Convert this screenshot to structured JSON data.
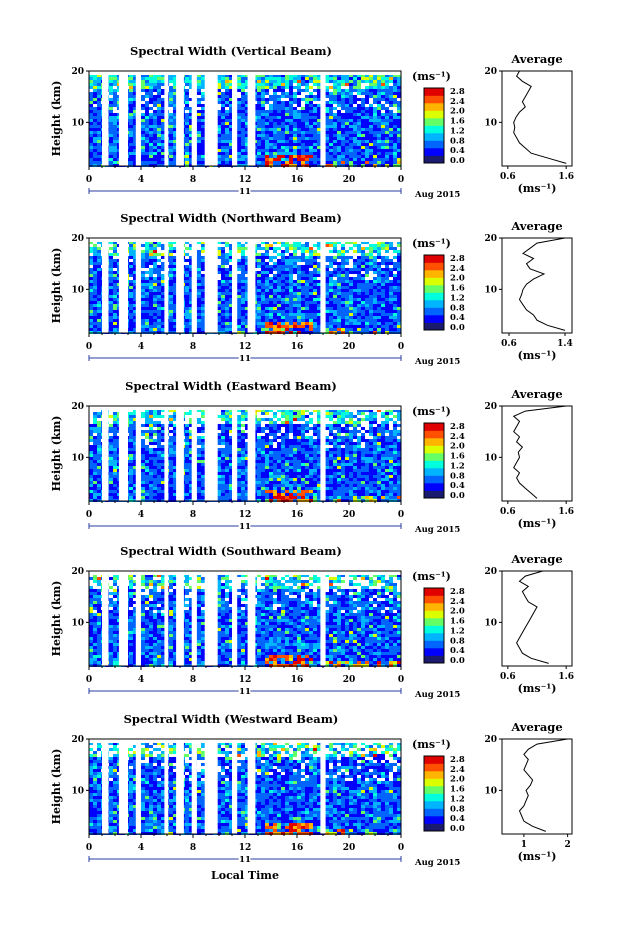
{
  "figure": {
    "xlabel": "Local Time",
    "date_label": "Aug 2015",
    "day_label": "11",
    "ylabel": "Height (km)",
    "colorbar_unit": "(ms⁻¹)",
    "avg_title": "Average",
    "avg_xlabel": "(ms⁻¹)"
  },
  "colorbar": {
    "ticks": [
      "2.8",
      "2.4",
      "2.0",
      "1.6",
      "1.2",
      "0.8",
      "0.4",
      "0.0"
    ],
    "colors": [
      "#1a1a6e",
      "#0000ff",
      "#0064ff",
      "#00b4ff",
      "#00ffdc",
      "#64ff64",
      "#dcff00",
      "#ffb400",
      "#ff5000",
      "#e00000"
    ]
  },
  "chart_data": [
    {
      "type": "heatmap",
      "title": "Spectral Width (Vertical Beam)",
      "xlim": [
        0,
        24
      ],
      "ylim": [
        1.5,
        20
      ],
      "x_ticks": [
        "0",
        "4",
        "8",
        "12",
        "16",
        "20",
        "0"
      ],
      "y_ticks": [
        "20",
        "10"
      ],
      "avg_x_ticks": [
        "0.6",
        "1.6"
      ],
      "avg_profile": {
        "xlim": [
          0.5,
          1.7
        ],
        "x": [
          1.6,
          1.3,
          1.0,
          0.9,
          0.8,
          0.75,
          0.7,
          0.72,
          0.7,
          0.74,
          0.8,
          0.9,
          0.85,
          0.9,
          0.95,
          1.0,
          0.85,
          0.75,
          0.8
        ],
        "y": [
          2,
          3,
          4,
          5,
          6,
          7,
          8,
          9,
          10,
          11,
          12,
          13,
          14,
          15,
          16,
          17,
          18,
          19,
          20
        ]
      }
    },
    {
      "type": "heatmap",
      "title": "Spectral Width (Northward Beam)",
      "xlim": [
        0,
        24
      ],
      "ylim": [
        1.5,
        20
      ],
      "x_ticks": [
        "0",
        "4",
        "8",
        "12",
        "16",
        "20",
        "0"
      ],
      "y_ticks": [
        "20",
        "10"
      ],
      "avg_x_ticks": [
        "0.6",
        "1.4"
      ],
      "avg_profile": {
        "xlim": [
          0.5,
          1.5
        ],
        "x": [
          1.4,
          1.15,
          1.0,
          0.95,
          0.85,
          0.8,
          0.75,
          0.78,
          0.8,
          0.85,
          0.95,
          1.1,
          0.9,
          0.85,
          0.95,
          0.8,
          0.9,
          1.0,
          1.4
        ],
        "y": [
          2,
          3,
          4,
          5,
          6,
          7,
          8,
          9,
          10,
          11,
          12,
          13,
          14,
          15,
          16,
          17,
          18,
          19,
          20
        ]
      }
    },
    {
      "type": "heatmap",
      "title": "Spectral Width (Eastward Beam)",
      "xlim": [
        0,
        24
      ],
      "ylim": [
        1.5,
        20
      ],
      "x_ticks": [
        "0",
        "4",
        "8",
        "12",
        "16",
        "20",
        "0"
      ],
      "y_ticks": [
        "20",
        "10"
      ],
      "avg_x_ticks": [
        "0.6",
        "1.6"
      ],
      "avg_profile": {
        "xlim": [
          0.5,
          1.7
        ],
        "x": [
          1.1,
          1.0,
          0.9,
          0.8,
          0.75,
          0.8,
          0.7,
          0.75,
          0.8,
          0.78,
          0.85,
          0.75,
          0.8,
          0.7,
          0.75,
          0.8,
          0.7,
          0.9,
          1.6
        ],
        "y": [
          2,
          3,
          4,
          5,
          6,
          7,
          8,
          9,
          10,
          11,
          12,
          13,
          14,
          15,
          16,
          17,
          18,
          19,
          20
        ]
      }
    },
    {
      "type": "heatmap",
      "title": "Spectral Width (Southward Beam)",
      "xlim": [
        0,
        24
      ],
      "ylim": [
        1.5,
        20
      ],
      "x_ticks": [
        "0",
        "4",
        "8",
        "12",
        "16",
        "20",
        "0"
      ],
      "y_ticks": [
        "20",
        "10"
      ],
      "avg_x_ticks": [
        "0.6",
        "1.6"
      ],
      "avg_profile": {
        "xlim": [
          0.5,
          1.7
        ],
        "x": [
          1.3,
          1.0,
          0.85,
          0.8,
          0.75,
          0.8,
          0.85,
          0.9,
          0.95,
          1.0,
          1.05,
          1.1,
          0.95,
          0.9,
          0.85,
          0.95,
          0.8,
          0.9,
          1.2
        ],
        "y": [
          2,
          3,
          4,
          5,
          6,
          7,
          8,
          9,
          10,
          11,
          12,
          13,
          14,
          15,
          16,
          17,
          18,
          19,
          20
        ]
      }
    },
    {
      "type": "heatmap",
      "title": "Spectral Width (Westward Beam)",
      "xlim": [
        0,
        24
      ],
      "ylim": [
        1.5,
        20
      ],
      "x_ticks": [
        "0",
        "4",
        "8",
        "12",
        "16",
        "20",
        "0"
      ],
      "y_ticks": [
        "20",
        "10"
      ],
      "avg_x_ticks": [
        "1",
        "2"
      ],
      "avg_profile": {
        "xlim": [
          0.5,
          2.1
        ],
        "x": [
          1.5,
          1.2,
          1.0,
          0.95,
          0.9,
          1.0,
          1.05,
          1.1,
          1.05,
          1.15,
          1.2,
          1.1,
          1.0,
          1.05,
          1.1,
          1.0,
          1.1,
          1.3,
          2.0
        ],
        "y": [
          2,
          3,
          4,
          5,
          6,
          7,
          8,
          9,
          10,
          11,
          12,
          13,
          14,
          15,
          16,
          17,
          18,
          19,
          20
        ]
      }
    }
  ]
}
